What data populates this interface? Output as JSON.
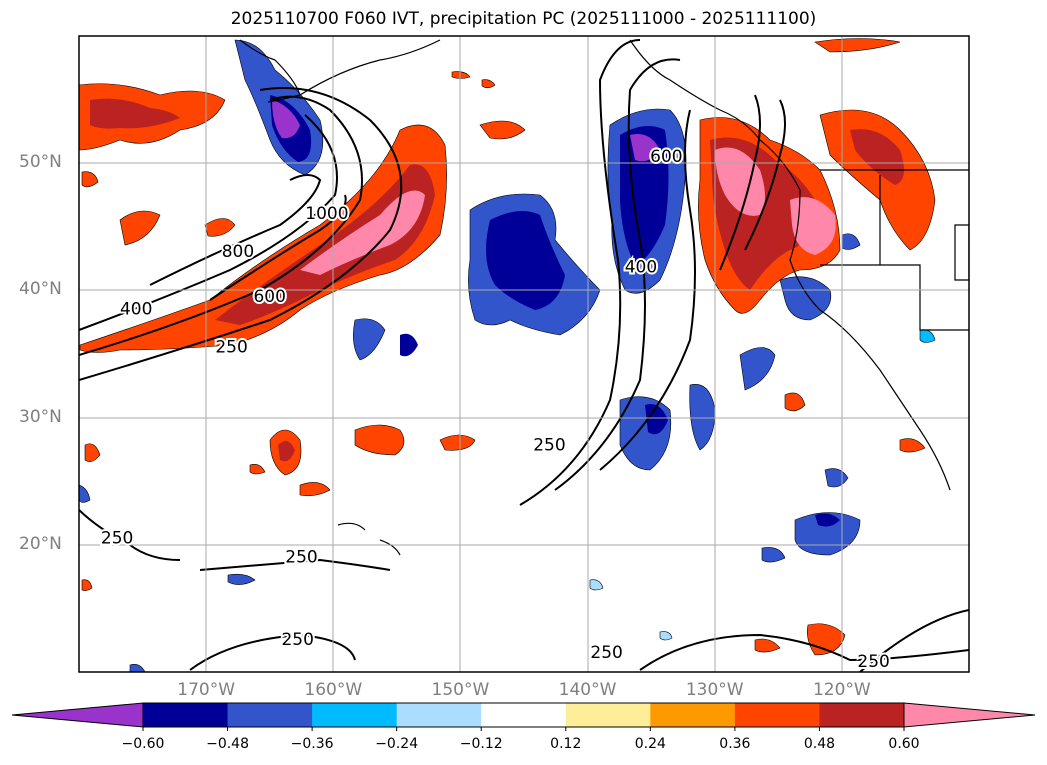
{
  "title": "2025110700 F060 IVT, precipitation PC (2025111000 - 2025111100)",
  "lat_labels": [
    {
      "lat": 50,
      "text": "50°N"
    },
    {
      "lat": 40,
      "text": "40°N"
    },
    {
      "lat": 30,
      "text": "30°N"
    },
    {
      "lat": 20,
      "text": "20°N"
    }
  ],
  "lon_labels": [
    {
      "lon": -170,
      "text": "170°W"
    },
    {
      "lon": -160,
      "text": "160°W"
    },
    {
      "lon": -150,
      "text": "150°W"
    },
    {
      "lon": -140,
      "text": "140°W"
    },
    {
      "lon": -130,
      "text": "130°W"
    },
    {
      "lon": -120,
      "text": "120°W"
    }
  ],
  "extent": {
    "lon": [
      -180,
      -110
    ],
    "lat": [
      10,
      60
    ]
  },
  "ivt_contour_labels": [
    {
      "text": "400",
      "lon": -175.5,
      "lat": 38.5
    },
    {
      "text": "800",
      "lon": -167.5,
      "lat": 43
    },
    {
      "text": "1000",
      "lon": -160.5,
      "lat": 46
    },
    {
      "text": "600",
      "lon": -165,
      "lat": 39.5
    },
    {
      "text": "250",
      "lon": -168,
      "lat": 35.5
    },
    {
      "text": "250",
      "lon": -143,
      "lat": 27.8
    },
    {
      "text": "600",
      "lon": -133.8,
      "lat": 50.5
    },
    {
      "text": "400",
      "lon": -135.8,
      "lat": 41.8
    },
    {
      "text": "250",
      "lon": -177,
      "lat": 20.5
    },
    {
      "text": "250",
      "lon": -162.5,
      "lat": 19
    },
    {
      "text": "250",
      "lon": -162.8,
      "lat": 12.5
    },
    {
      "text": "250",
      "lon": -138.5,
      "lat": 11.5
    },
    {
      "text": "250",
      "lon": -117.5,
      "lat": 10.8
    }
  ],
  "colorbar": {
    "levels": [
      -0.72,
      -0.6,
      -0.48,
      -0.36,
      -0.24,
      -0.12,
      0.12,
      0.24,
      0.36,
      0.48,
      0.6,
      0.72
    ],
    "tick_labels": [
      "−0.60",
      "−0.48",
      "−0.36",
      "−0.24",
      "−0.12",
      "0.12",
      "0.24",
      "0.36",
      "0.48",
      "0.60"
    ],
    "colors": [
      "#9933cc",
      "#000099",
      "#3355cc",
      "#00bbff",
      "#aaddff",
      "#ffffff",
      "#ffee99",
      "#ff9900",
      "#ff4400",
      "#bb2222",
      "#ff88aa"
    ],
    "extend": "both"
  }
}
